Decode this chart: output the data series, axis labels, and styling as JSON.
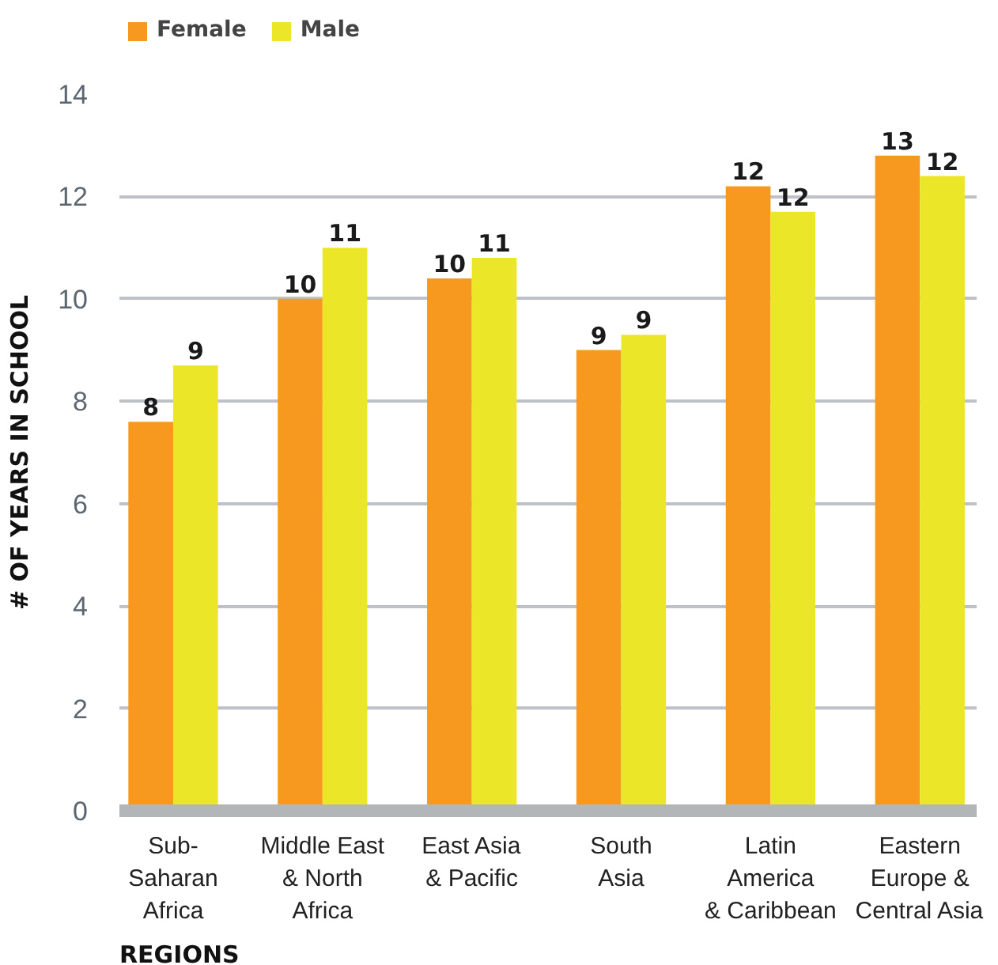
{
  "chart_data": {
    "type": "bar",
    "xlabel": "REGIONS",
    "ylabel": "# OF YEARS IN SCHOOL",
    "categories": [
      "Sub-\nSaharan\nAfrica",
      "Middle East\n& North\nAfrica",
      "East Asia\n& Pacific",
      "South\nAsia",
      "Latin\nAmerica\n& Caribbean",
      "Eastern\nEurope &\nCentral Asia"
    ],
    "series": [
      {
        "name": "Female",
        "color": "#f7991f",
        "values": [
          7.6,
          10.0,
          10.4,
          9.0,
          12.2,
          12.8
        ],
        "value_labels": [
          "8",
          "10",
          "10",
          "9",
          "12",
          "13"
        ]
      },
      {
        "name": "Male",
        "color": "#ebe628",
        "values": [
          8.7,
          11.0,
          10.8,
          9.3,
          11.7,
          12.4
        ],
        "value_labels": [
          "9",
          "11",
          "11",
          "9",
          "12",
          "12"
        ]
      }
    ],
    "ylim": [
      0,
      14
    ],
    "yticks": [
      0,
      2,
      4,
      6,
      8,
      10,
      12,
      14
    ],
    "grid": "y",
    "legend": "top left"
  }
}
